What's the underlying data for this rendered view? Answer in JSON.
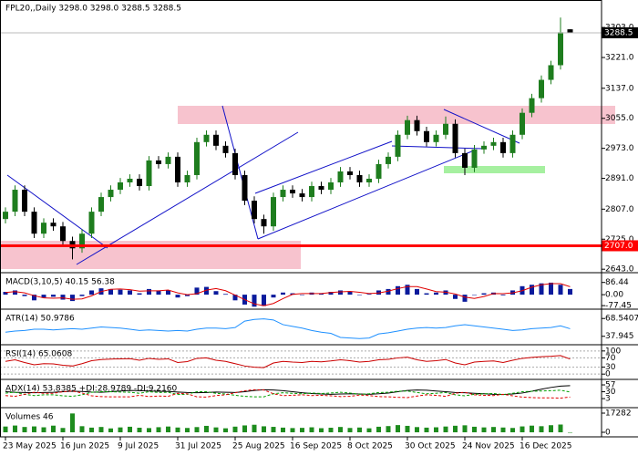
{
  "chart_data": [
    {
      "type": "candlestick",
      "title": "FPL20,,Daily  3298.0 3298.0 3288.5 3288.5",
      "up_color": "#1e7d1e",
      "down_color": "#000000",
      "open": [
        2780,
        2800,
        2860,
        2800,
        2740,
        2770,
        2760,
        2720,
        2700,
        2740,
        2800,
        2840,
        2860,
        2880,
        2890,
        2870,
        2940,
        2930,
        2950,
        2880,
        2900,
        2990,
        3010,
        2980,
        2960,
        2900,
        2830,
        2780,
        2760,
        2840,
        2860,
        2850,
        2840,
        2870,
        2860,
        2880,
        2910,
        2900,
        2880,
        2890,
        2930,
        2950,
        3010,
        3050,
        3020,
        2990,
        3010,
        3040,
        2960,
        2920,
        2970,
        2980,
        2990,
        2960,
        3010,
        3070,
        3110,
        3160,
        3200,
        3298
      ],
      "high": [
        2812,
        2872,
        2872,
        2812,
        2782,
        2782,
        2772,
        2732,
        2752,
        2812,
        2852,
        2872,
        2892,
        2902,
        2902,
        2952,
        2952,
        2962,
        2962,
        2912,
        3002,
        3022,
        3022,
        2992,
        2972,
        2912,
        2842,
        2792,
        2852,
        2872,
        2872,
        2862,
        2882,
        2882,
        2892,
        2922,
        2922,
        2912,
        2902,
        2942,
        2962,
        3022,
        3062,
        3062,
        3032,
        3022,
        3060,
        3052,
        2972,
        2982,
        2992,
        3002,
        3002,
        3022,
        3082,
        3122,
        3172,
        3212,
        3330,
        3298
      ],
      "low": [
        2768,
        2788,
        2788,
        2728,
        2728,
        2748,
        2708,
        2670,
        2688,
        2728,
        2788,
        2828,
        2848,
        2868,
        2858,
        2858,
        2918,
        2918,
        2868,
        2868,
        2888,
        2978,
        2968,
        2948,
        2888,
        2818,
        2768,
        2740,
        2748,
        2828,
        2838,
        2828,
        2828,
        2848,
        2848,
        2868,
        2888,
        2868,
        2868,
        2878,
        2918,
        2938,
        2998,
        3008,
        2978,
        2978,
        2998,
        2948,
        2900,
        2908,
        2958,
        2968,
        2948,
        2948,
        2998,
        3058,
        3098,
        3148,
        3188,
        3288.5
      ],
      "close": [
        2800,
        2860,
        2800,
        2740,
        2770,
        2760,
        2720,
        2700,
        2740,
        2800,
        2840,
        2860,
        2880,
        2890,
        2870,
        2940,
        2930,
        2950,
        2880,
        2900,
        2990,
        3010,
        2980,
        2960,
        2900,
        2830,
        2780,
        2760,
        2840,
        2860,
        2850,
        2840,
        2870,
        2860,
        2880,
        2910,
        2900,
        2880,
        2890,
        2930,
        2950,
        3010,
        3050,
        3020,
        2990,
        3010,
        3040,
        2960,
        2920,
        2970,
        2980,
        2990,
        2960,
        3010,
        3070,
        3110,
        3160,
        3200,
        3290,
        3288.5
      ],
      "ylim": [
        2636,
        3378
      ],
      "yticks": [
        {
          "value": 2643,
          "label": "2643.0"
        },
        {
          "value": 2725,
          "label": "2725.0"
        },
        {
          "value": 2807,
          "label": "2807.0"
        },
        {
          "value": 2891,
          "label": "2891.0"
        },
        {
          "value": 2973,
          "label": "2973.0"
        },
        {
          "value": 3055,
          "label": "3055.0"
        },
        {
          "value": 3137,
          "label": "3137.0"
        },
        {
          "value": 3221,
          "label": "3221.0"
        },
        {
          "value": 3303,
          "label": "3303.0"
        }
      ],
      "last_price": 3288.5,
      "hlines": [
        {
          "value": 2707,
          "label": "2707.0",
          "color": "#ff0000"
        }
      ],
      "xticks": [
        {
          "value": 0,
          "label": "23 May 2025"
        },
        {
          "value": 6,
          "label": "16 Jun 2025"
        },
        {
          "value": 12,
          "label": "9 Jul 2025"
        },
        {
          "value": 18,
          "label": "31 Jul 2025"
        },
        {
          "value": 24,
          "label": "25 Aug 2025"
        },
        {
          "value": 30,
          "label": "16 Sep 2025"
        },
        {
          "value": 36,
          "label": "8 Oct 2025"
        },
        {
          "value": 42,
          "label": "30 Oct 2025"
        },
        {
          "value": 48,
          "label": "24 Nov 2025"
        },
        {
          "value": 54,
          "label": "16 Dec 2025"
        }
      ]
    },
    {
      "type": "indicator",
      "title": "MACD(3,10,5) 40.15 56.38",
      "ylim": [
        -96,
        149
      ],
      "yticks": [
        86.44,
        {
          "value": 0,
          "label": "0.00"
        },
        -77.45
      ],
      "series": [
        {
          "type": "bar",
          "color": "#0a1a9c",
          "values": [
            20,
            30,
            -10,
            -40,
            -20,
            -15,
            -35,
            -45,
            -10,
            30,
            45,
            40,
            35,
            30,
            10,
            40,
            30,
            30,
            -20,
            -10,
            50,
            55,
            25,
            5,
            -40,
            -70,
            -85,
            -80,
            -20,
            15,
            10,
            0,
            15,
            10,
            20,
            30,
            20,
            0,
            5,
            30,
            40,
            60,
            70,
            40,
            10,
            15,
            30,
            -30,
            -50,
            0,
            10,
            15,
            -5,
            30,
            60,
            70,
            80,
            85,
            70,
            40.15
          ]
        },
        {
          "type": "line",
          "color": "#e00000",
          "values": [
            15,
            22,
            13,
            -7,
            -23,
            -25,
            -23,
            -32,
            -30,
            -8,
            22,
            38,
            40,
            35,
            25,
            27,
            27,
            33,
            13,
            0,
            7,
            32,
            43,
            28,
            -3,
            -35,
            -65,
            -78,
            -62,
            -28,
            2,
            8,
            8,
            8,
            15,
            20,
            23,
            17,
            8,
            12,
            25,
            43,
            57,
            57,
            40,
            22,
            18,
            5,
            -17,
            -27,
            -13,
            8,
            7,
            13,
            28,
            53,
            70,
            78,
            78,
            56.38
          ]
        }
      ]
    },
    {
      "type": "indicator",
      "title": "ATR(14) 50.9786",
      "ylim": [
        25,
        83
      ],
      "yticks": [
        68.5407,
        37.945
      ],
      "series": [
        {
          "type": "line",
          "color": "#1e90ff",
          "values": [
            45,
            47,
            48,
            50,
            50,
            49,
            50,
            51,
            50,
            52,
            54,
            53,
            52,
            50,
            48,
            49,
            48,
            47,
            48,
            47,
            50,
            52,
            52,
            51,
            53,
            64,
            67,
            68,
            66,
            58,
            55,
            52,
            48,
            45,
            43,
            36,
            35,
            34,
            35,
            42,
            44,
            47,
            50,
            52,
            53,
            52,
            53,
            56,
            58,
            56,
            54,
            52,
            50,
            48,
            49,
            51,
            52,
            53,
            56,
            50.9786
          ]
        }
      ]
    },
    {
      "type": "indicator",
      "title": "RSI(14) 65.0608",
      "ylim": [
        -19,
        123
      ],
      "yticks": [
        100,
        70,
        30,
        0
      ],
      "grid": "dashed",
      "series": [
        {
          "type": "line",
          "color": "#cc0000",
          "values": [
            55,
            62,
            50,
            40,
            45,
            44,
            38,
            35,
            45,
            58,
            63,
            65,
            66,
            67,
            60,
            68,
            64,
            66,
            50,
            54,
            68,
            70,
            60,
            55,
            45,
            35,
            30,
            28,
            48,
            55,
            52,
            50,
            55,
            53,
            57,
            62,
            58,
            52,
            55,
            62,
            64,
            70,
            73,
            62,
            55,
            58,
            63,
            48,
            40,
            52,
            55,
            57,
            50,
            60,
            68,
            72,
            75,
            77,
            80,
            65.0608
          ]
        }
      ]
    },
    {
      "type": "indicator",
      "title": "ADX(14) 53.8385 +DI:28.9789 -DI:9.2160",
      "ylim": [
        -29,
        75
      ],
      "yticks": [
        57,
        30,
        3
      ],
      "series": [
        {
          "type": "line",
          "color": "#000000",
          "values": [
            30,
            28,
            27,
            26,
            27,
            28,
            30,
            32,
            31,
            29,
            28,
            30,
            33,
            35,
            34,
            33,
            32,
            31,
            29,
            27,
            26,
            27,
            29,
            28,
            27,
            30,
            35,
            38,
            37,
            34,
            30,
            26,
            23,
            21,
            20,
            21,
            22,
            21,
            20,
            22,
            25,
            30,
            35,
            37,
            36,
            33,
            30,
            27,
            26,
            24,
            22,
            20,
            19,
            21,
            25,
            32,
            40,
            47,
            52,
            53.8385
          ]
        },
        {
          "type": "line",
          "dash": true,
          "color": "#00a000",
          "values": [
            25,
            28,
            20,
            15,
            18,
            18,
            14,
            12,
            18,
            28,
            30,
            30,
            29,
            28,
            24,
            30,
            27,
            28,
            19,
            20,
            30,
            30,
            24,
            21,
            16,
            12,
            10,
            10,
            22,
            26,
            24,
            22,
            25,
            23,
            25,
            28,
            25,
            20,
            22,
            27,
            28,
            32,
            33,
            27,
            22,
            24,
            27,
            18,
            14,
            20,
            22,
            23,
            19,
            24,
            30,
            32,
            33,
            34,
            36,
            28.9789
          ]
        },
        {
          "type": "line",
          "dash": true,
          "color": "#e00000",
          "values": [
            15,
            12,
            20,
            28,
            24,
            24,
            30,
            33,
            25,
            14,
            11,
            10,
            10,
            10,
            16,
            11,
            13,
            12,
            24,
            22,
            10,
            9,
            15,
            18,
            26,
            34,
            38,
            37,
            22,
            15,
            16,
            18,
            15,
            16,
            14,
            11,
            12,
            17,
            15,
            11,
            10,
            8,
            7,
            13,
            18,
            16,
            12,
            24,
            28,
            18,
            16,
            15,
            20,
            14,
            9,
            7,
            6,
            6,
            5,
            9.216
          ]
        }
      ]
    },
    {
      "type": "indicator",
      "title": "Volumes 46",
      "ylim": [
        -3290,
        21400
      ],
      "yticks": [
        17282,
        0
      ],
      "series": [
        {
          "type": "bar",
          "color": "#1e8c1e",
          "values": [
            5200,
            6100,
            4800,
            5300,
            4500,
            6000,
            3900,
            17000,
            5500,
            4200,
            4800,
            3500,
            4400,
            5000,
            4100,
            3800,
            4600,
            5200,
            4300,
            3900,
            4700,
            5800,
            4400,
            3600,
            5100,
            6200,
            6800,
            5400,
            4900,
            4200,
            3800,
            4000,
            4500,
            3700,
            4100,
            4800,
            3900,
            4300,
            3600,
            5000,
            5600,
            6500,
            5800,
            4700,
            4200,
            4500,
            5200,
            5900,
            6300,
            5000,
            4400,
            4800,
            4300,
            3900,
            5300,
            6000,
            5500,
            6400,
            7000,
            46
          ]
        }
      ]
    }
  ]
}
